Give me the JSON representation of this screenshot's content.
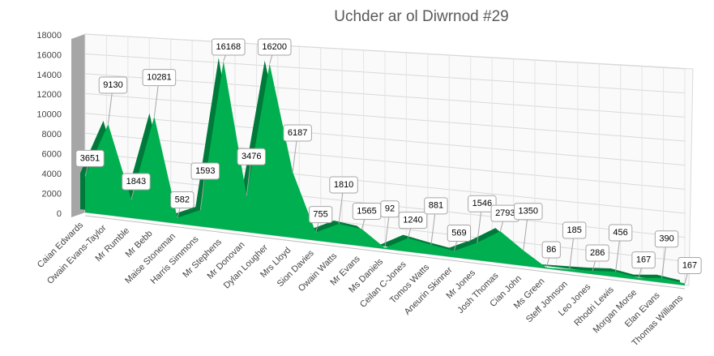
{
  "chart_data": {
    "type": "area3d",
    "title": "Uchder ar ol Diwrnod #29",
    "categories": [
      "Caian Edwards",
      "Owain Evans-Taylor",
      "Mr Rumble",
      "Mr Bebb",
      "Maise Stoneman",
      "Harris Simmons",
      "Mr Stephens",
      "Mr Donovan",
      "Dylan Lougher",
      "Mrs Lloyd",
      "Sion Davies",
      "Owain Watts",
      "Mr Evans",
      "Ms Daniels",
      "Ceilan C-Jones",
      "Tomos Watts",
      "Aneurin Skinner",
      "Mr Jones",
      "Josh Thomas",
      "Cian John",
      "Ms Green",
      "Steff Johnson",
      "Leo Jones",
      "Rhodri Lewis",
      "Morgan Morse",
      "Elan Evans",
      "Thomas Williams"
    ],
    "values": [
      3651,
      9130,
      1843,
      10281,
      582,
      1593,
      16168,
      3476,
      16200,
      6187,
      755,
      1810,
      1565,
      92,
      1240,
      881,
      569,
      1546,
      2793,
      1350,
      86,
      185,
      286,
      456,
      167,
      390,
      167
    ],
    "color": "#00b050",
    "ylim": [
      0,
      18000
    ],
    "yticks": [
      0,
      2000,
      4000,
      6000,
      8000,
      10000,
      12000,
      14000,
      16000,
      18000
    ],
    "grid": true
  }
}
